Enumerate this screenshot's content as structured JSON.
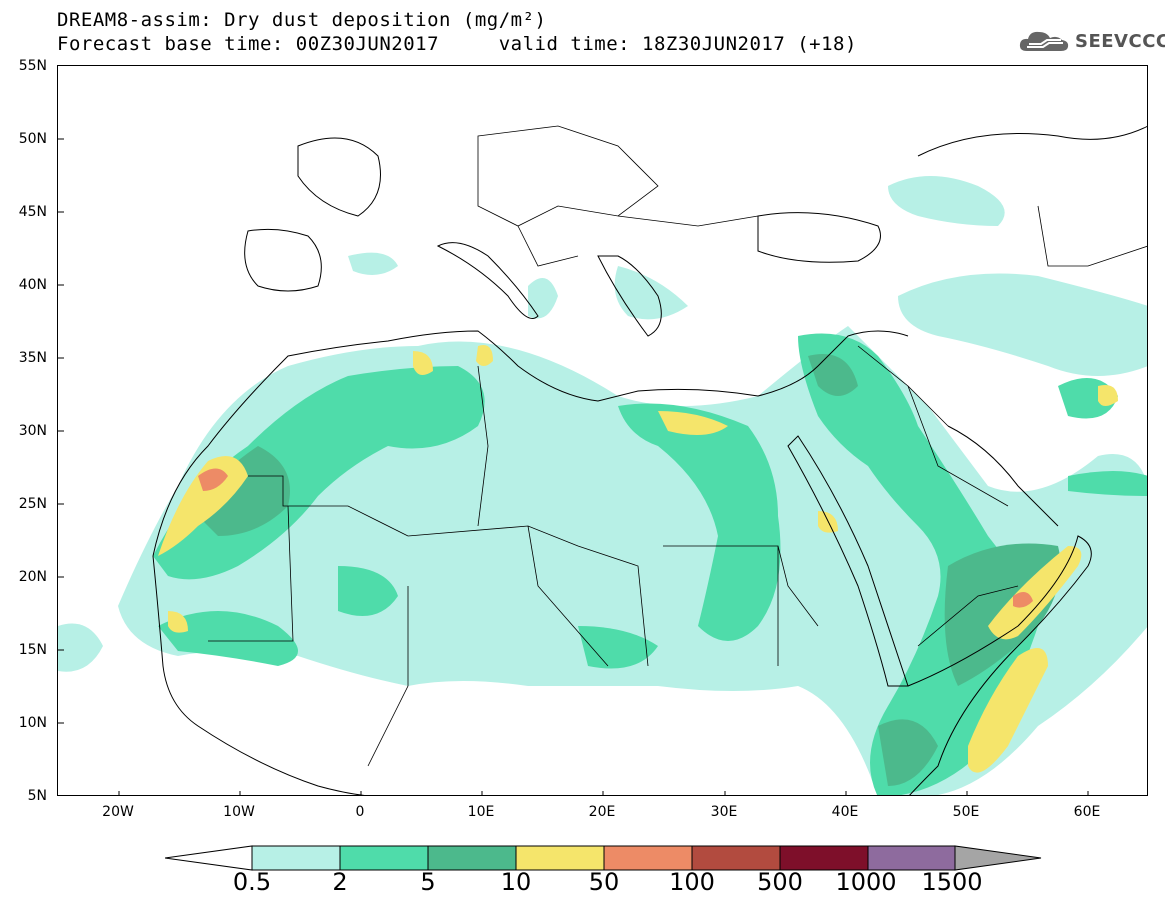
{
  "title": {
    "line1": "DREAM8-assim: Dry dust deposition (mg/m²)",
    "line2": "Forecast base time: 00Z30JUN2017     valid time: 18Z30JUN2017 (+18)"
  },
  "logo": {
    "text": "SEEVCCC",
    "icon": "cloud-icon"
  },
  "map": {
    "lat_labels": [
      "55N",
      "50N",
      "45N",
      "40N",
      "35N",
      "30N",
      "25N",
      "20N",
      "15N",
      "10N",
      "5N"
    ],
    "lon_labels": [
      "20W",
      "10W",
      "0",
      "10E",
      "20E",
      "30E",
      "40E",
      "50E",
      "60E"
    ],
    "lat_range": [
      5,
      55
    ],
    "lon_range": [
      -25,
      65
    ],
    "land_color": "#ffffff",
    "border_color": "#000000"
  },
  "colorbar": {
    "labels": [
      "0.5",
      "2",
      "5",
      "10",
      "50",
      "100",
      "500",
      "1000",
      "1500"
    ],
    "colors": [
      "#b7f0e6",
      "#4fdcaa",
      "#4cb98c",
      "#f5e56b",
      "#ed8b66",
      "#b24b3f",
      "#7e0f2a",
      "#8e6b9e",
      "#a5a5a5"
    ]
  }
}
